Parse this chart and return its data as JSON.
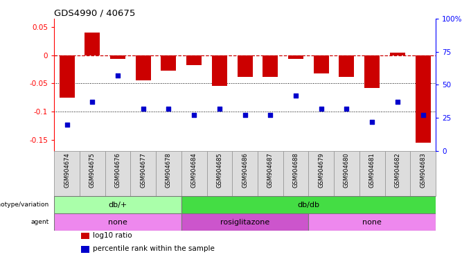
{
  "title": "GDS4990 / 40675",
  "samples": [
    "GSM904674",
    "GSM904675",
    "GSM904676",
    "GSM904677",
    "GSM904678",
    "GSM904684",
    "GSM904685",
    "GSM904686",
    "GSM904687",
    "GSM904688",
    "GSM904679",
    "GSM904680",
    "GSM904681",
    "GSM904682",
    "GSM904683"
  ],
  "log10_ratio": [
    -0.075,
    0.04,
    -0.007,
    -0.045,
    -0.028,
    -0.018,
    -0.055,
    -0.038,
    -0.038,
    -0.007,
    -0.032,
    -0.038,
    -0.058,
    0.005,
    -0.155
  ],
  "percentile_rank": [
    20,
    37,
    57,
    32,
    32,
    27,
    32,
    27,
    27,
    42,
    32,
    32,
    22,
    37,
    27
  ],
  "ylim_left": [
    -0.17,
    0.065
  ],
  "ylim_right": [
    0,
    100
  ],
  "yticks_left": [
    -0.15,
    -0.1,
    -0.05,
    0,
    0.05
  ],
  "yticks_right": [
    0,
    25,
    50,
    75,
    100
  ],
  "bar_color": "#cc0000",
  "dot_color": "#0000cc",
  "ref_line_color": "#cc0000",
  "dotted_lines": [
    -0.05,
    -0.1
  ],
  "genotype_groups": [
    {
      "label": "db/+",
      "start": 0,
      "end": 5,
      "color": "#aaffaa"
    },
    {
      "label": "db/db",
      "start": 5,
      "end": 15,
      "color": "#44dd44"
    }
  ],
  "agent_groups": [
    {
      "label": "none",
      "start": 0,
      "end": 5,
      "color": "#ee88ee"
    },
    {
      "label": "rosiglitazone",
      "start": 5,
      "end": 10,
      "color": "#cc55cc"
    },
    {
      "label": "none",
      "start": 10,
      "end": 15,
      "color": "#ee88ee"
    }
  ],
  "legend_items": [
    {
      "color": "#cc0000",
      "label": "log10 ratio"
    },
    {
      "color": "#0000cc",
      "label": "percentile rank within the sample"
    }
  ],
  "bar_width": 0.6,
  "sample_box_color": "#dddddd",
  "sample_box_edge": "#999999"
}
